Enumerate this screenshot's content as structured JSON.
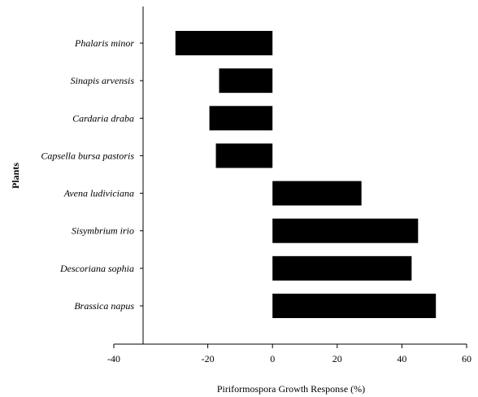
{
  "chart_data": {
    "type": "bar",
    "orientation": "horizontal",
    "title": "",
    "xlabel": "Piriformospora Growth Response (%)",
    "ylabel": "Plants",
    "xlim": [
      -40,
      60
    ],
    "xticks": [
      -40,
      -20,
      0,
      20,
      40,
      60
    ],
    "grid": false,
    "categories": [
      "Phalaris minor",
      "Sinapis arvensis",
      "Cardaria draba",
      "Capsella bursa pastoris",
      "Avena ludiviciana",
      "Sisymbrium irio",
      "Descoriana sophia",
      "Brassica napus"
    ],
    "values": [
      -30,
      -16.5,
      -19.5,
      -17.5,
      27.5,
      45,
      43,
      50.5
    ],
    "bar_color": "#000000"
  }
}
